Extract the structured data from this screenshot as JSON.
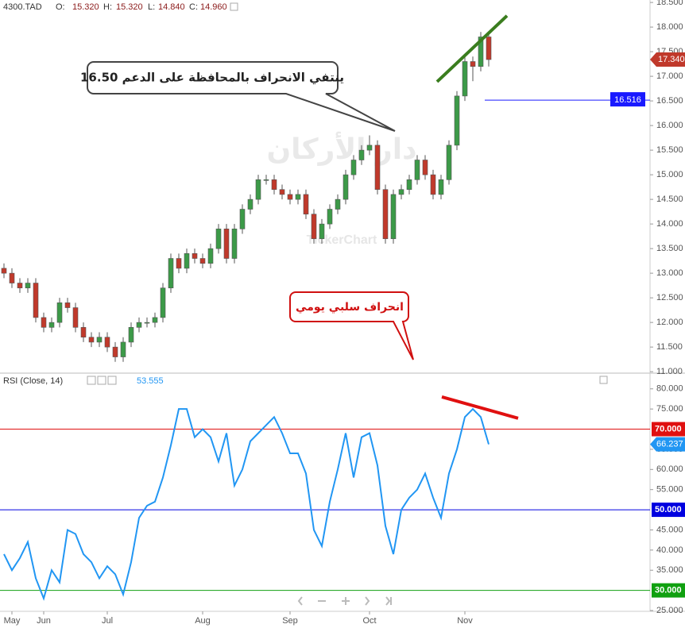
{
  "header": {
    "symbol": "4300.TAD",
    "fields": [
      {
        "label": "O:",
        "value": "15.320"
      },
      {
        "label": "H:",
        "value": "15.320"
      },
      {
        "label": "L:",
        "value": "14.840"
      },
      {
        "label": "C:",
        "value": "14.960"
      }
    ]
  },
  "watermark": [
    "دار الأركان",
    "TickerChart"
  ],
  "chart_data": [
    {
      "type": "candlestick",
      "categories": [
        null,
        "May",
        null,
        null,
        null,
        "Jun",
        null,
        null,
        null,
        null,
        null,
        null,
        null,
        "Jul",
        null,
        null,
        null,
        null,
        null,
        null,
        null,
        null,
        null,
        null,
        null,
        "Aug",
        null,
        null,
        null,
        null,
        null,
        null,
        null,
        null,
        null,
        null,
        "Sep",
        null,
        null,
        null,
        null,
        null,
        null,
        null,
        null,
        null,
        "Oct",
        null,
        null,
        null,
        null,
        null,
        null,
        null,
        null,
        null,
        null,
        null,
        "Nov",
        null,
        null,
        null
      ],
      "open": [
        13.1,
        13.0,
        12.8,
        12.7,
        12.8,
        12.1,
        11.9,
        12.0,
        12.4,
        12.3,
        11.9,
        11.7,
        11.6,
        11.7,
        11.5,
        11.3,
        11.6,
        11.9,
        12.0,
        12.0,
        12.1,
        12.7,
        13.3,
        13.1,
        13.4,
        13.3,
        13.2,
        13.5,
        13.9,
        13.3,
        13.9,
        14.3,
        14.5,
        14.9,
        14.9,
        14.7,
        14.6,
        14.5,
        14.6,
        14.2,
        13.7,
        14.0,
        14.3,
        14.5,
        15.0,
        15.3,
        15.5,
        15.6,
        14.7,
        13.7,
        14.6,
        14.7,
        14.9,
        15.3,
        15.0,
        14.6,
        14.9,
        15.6,
        16.6,
        17.3,
        17.2,
        17.8
      ],
      "high": [
        13.2,
        13.1,
        12.9,
        12.9,
        12.9,
        12.2,
        12.1,
        12.5,
        12.5,
        12.4,
        12.0,
        11.8,
        11.8,
        11.8,
        11.6,
        11.7,
        12.0,
        12.1,
        12.1,
        12.2,
        12.8,
        13.4,
        13.4,
        13.5,
        13.5,
        13.4,
        13.6,
        14.0,
        14.0,
        14.0,
        14.4,
        14.6,
        15.0,
        15.0,
        15.0,
        14.8,
        14.7,
        14.7,
        14.7,
        14.3,
        14.1,
        14.4,
        14.6,
        15.1,
        15.4,
        15.6,
        15.8,
        15.7,
        14.8,
        14.7,
        14.8,
        15.0,
        15.4,
        15.4,
        15.1,
        15.0,
        15.7,
        16.7,
        17.4,
        17.4,
        17.9,
        17.9
      ],
      "low": [
        12.9,
        12.7,
        12.6,
        12.6,
        12.0,
        11.8,
        11.8,
        11.9,
        12.2,
        11.8,
        11.6,
        11.5,
        11.5,
        11.4,
        11.2,
        11.2,
        11.5,
        11.8,
        11.9,
        11.9,
        12.0,
        12.6,
        13.0,
        13.0,
        13.2,
        13.1,
        13.1,
        13.4,
        13.2,
        13.2,
        13.8,
        14.2,
        14.4,
        14.8,
        14.6,
        14.5,
        14.4,
        14.4,
        14.1,
        13.6,
        13.6,
        13.9,
        14.2,
        14.4,
        14.9,
        15.2,
        15.4,
        14.6,
        13.6,
        13.6,
        14.5,
        14.6,
        14.8,
        14.9,
        14.5,
        14.5,
        14.8,
        15.5,
        16.5,
        16.9,
        17.1,
        17.2
      ],
      "close": [
        13.0,
        12.8,
        12.7,
        12.8,
        12.1,
        11.9,
        12.0,
        12.4,
        12.3,
        11.9,
        11.7,
        11.6,
        11.7,
        11.5,
        11.3,
        11.6,
        11.9,
        12.0,
        12.0,
        12.1,
        12.7,
        13.3,
        13.1,
        13.4,
        13.3,
        13.2,
        13.5,
        13.9,
        13.3,
        13.9,
        14.3,
        14.5,
        14.9,
        14.9,
        14.7,
        14.6,
        14.5,
        14.6,
        14.2,
        13.7,
        14.0,
        14.3,
        14.5,
        15.0,
        15.3,
        15.5,
        15.6,
        14.7,
        13.7,
        14.6,
        14.7,
        14.9,
        15.3,
        15.0,
        14.6,
        14.9,
        15.6,
        16.6,
        17.3,
        17.2,
        17.8,
        17.34
      ],
      "last_close_label": "17.340",
      "up_color": "#3c9a48",
      "down_color": "#c0392b",
      "ylim": [
        10.97,
        18.55
      ],
      "yticks": [
        {
          "value": 11,
          "label": "11.000"
        },
        {
          "value": 11.5,
          "label": "11.500"
        },
        {
          "value": 12,
          "label": "12.000"
        },
        {
          "value": 12.5,
          "label": "12.500"
        },
        {
          "value": 13,
          "label": "13.000"
        },
        {
          "value": 13.5,
          "label": "13.500"
        },
        {
          "value": 14,
          "label": "14.000"
        },
        {
          "value": 14.5,
          "label": "14.500"
        },
        {
          "value": 15,
          "label": "15.000"
        },
        {
          "value": 15.5,
          "label": "15.500"
        },
        {
          "value": 16,
          "label": "16.000"
        },
        {
          "value": 16.5,
          "label": "16.500"
        },
        {
          "value": 17,
          "label": "17.000"
        },
        {
          "value": 17.5,
          "label": "17.500"
        },
        {
          "value": 18,
          "label": "18.000"
        },
        {
          "value": 18.5,
          "label": "18.500"
        }
      ],
      "support": {
        "value": 16.516,
        "color": "#1a1aff"
      },
      "trendline": {
        "x": [
          54.5,
          63.3
        ],
        "y": [
          16.89,
          18.23
        ],
        "color": "#3a7d1e"
      },
      "annotations": [
        "ينتفي الانحراف بالمحافظة على الدعم 16.50",
        "انحراف سلبي يومي"
      ]
    },
    {
      "type": "line",
      "title": "RSI (Close, 14)",
      "current": "53.555",
      "series": [
        {
          "name": "RSI",
          "color": "#2196f3",
          "values": [
            39,
            35,
            38,
            42,
            33,
            28,
            35,
            32,
            45,
            44,
            39,
            37,
            33,
            36,
            34,
            29,
            37,
            48,
            51,
            52,
            58,
            66,
            75,
            75,
            68,
            70,
            68,
            62,
            69,
            56,
            60,
            67,
            69,
            71,
            73,
            69,
            64,
            64,
            59,
            45,
            41,
            52,
            60,
            69,
            58,
            68,
            69,
            61,
            46,
            39,
            50,
            53,
            55,
            59,
            53,
            48,
            59,
            65,
            73,
            75,
            73,
            66.237
          ]
        }
      ],
      "ylim": [
        25,
        83.5
      ],
      "yticks": [
        {
          "value": 25,
          "label": "25.000"
        },
        {
          "value": 35,
          "label": "35.000"
        },
        {
          "value": 40,
          "label": "40.000"
        },
        {
          "value": 45,
          "label": "45.000"
        },
        {
          "value": 55,
          "label": "55.000"
        },
        {
          "value": 60,
          "label": "60.000"
        },
        {
          "value": 65,
          "label": "65.000"
        },
        {
          "value": 75,
          "label": "75.000"
        },
        {
          "value": 80,
          "label": "80.000"
        }
      ],
      "levels": [
        {
          "value": 70,
          "label": "70.000",
          "color": "#e01010"
        },
        {
          "value": 50,
          "label": "50.000",
          "color": "#0000e0"
        },
        {
          "value": 30,
          "label": "30.000",
          "color": "#10a010"
        }
      ],
      "trendline": {
        "x": [
          55.1,
          64.7
        ],
        "y": [
          78.0,
          72.7
        ],
        "color": "#e01010"
      }
    }
  ]
}
